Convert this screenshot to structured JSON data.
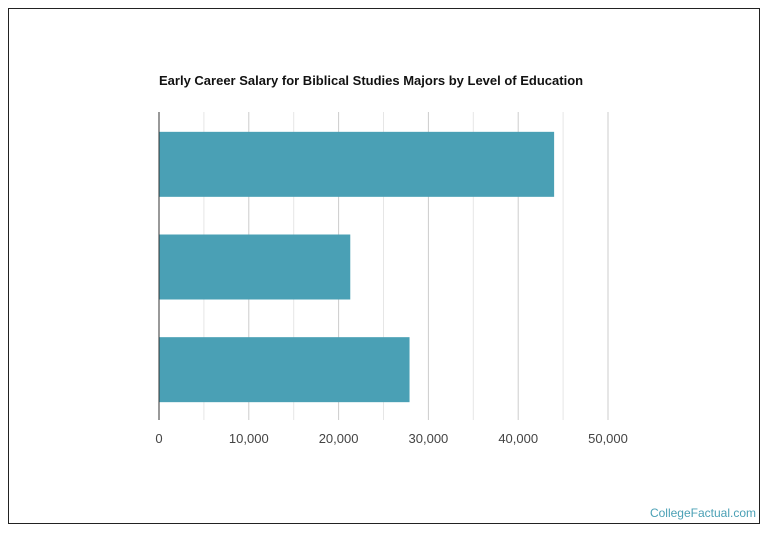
{
  "chart_data": {
    "type": "bar",
    "orientation": "horizontal",
    "title": "Early Career Salary for Biblical Studies Majors by Level of Education",
    "categories": [
      "",
      "",
      ""
    ],
    "values": [
      44000,
      21300,
      27900
    ],
    "xlabel": "",
    "ylabel": "",
    "xlim": [
      0,
      50000
    ],
    "ticks": [
      0,
      10000,
      20000,
      30000,
      40000,
      50000
    ],
    "tick_labels": [
      "0",
      "10,000",
      "20,000",
      "30,000",
      "40,000",
      "50,000"
    ],
    "minor_gridlines_every": 5000,
    "grid": true,
    "legend": "none",
    "bar_color": "#4aa0b5"
  },
  "watermark": "CollegeFactual.com"
}
